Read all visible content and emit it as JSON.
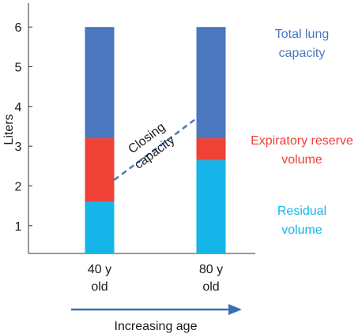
{
  "chart_data": {
    "type": "bar",
    "stacked": true,
    "ylabel": "Liters",
    "xlabel": "Increasing age",
    "ylim": [
      0.3,
      6.6
    ],
    "yticks": [
      1,
      2,
      3,
      4,
      5,
      6
    ],
    "categories": [
      {
        "line1": "40 y",
        "line2": "old"
      },
      {
        "line1": "80 y",
        "line2": "old"
      }
    ],
    "series": [
      {
        "key": "residual",
        "label_line1": "Residual",
        "label_line2": "volume",
        "color": "#15b5ea",
        "values": [
          1.6,
          2.65
        ]
      },
      {
        "key": "expiratory",
        "label_line1": "Expiratory reserve",
        "label_line2": "volume",
        "color": "#ef4136",
        "values": [
          1.6,
          0.55
        ]
      },
      {
        "key": "total",
        "label_line1": "Total lung",
        "label_line2": "capacity",
        "color": "#4a77bd",
        "values": [
          2.8,
          2.8
        ]
      }
    ],
    "annotation": {
      "line1": "Closing",
      "line2": "capacity",
      "from": [
        0,
        2.15
      ],
      "to": [
        1,
        3.7
      ],
      "color": "#4a77bd"
    },
    "arrow_color": "#3a6fb7",
    "grid": false
  }
}
